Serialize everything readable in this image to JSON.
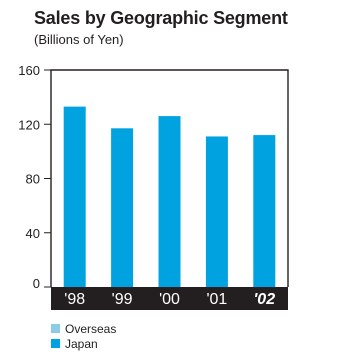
{
  "chart_data": {
    "type": "bar",
    "title": "Sales by Geographic Segment",
    "subtitle": "(Billions of Yen)",
    "categories": [
      "'98",
      "'99",
      "'00",
      "'01",
      "'02"
    ],
    "highlight_category": "'02",
    "yticks": [
      0,
      40,
      80,
      120,
      160
    ],
    "ylim": [
      0,
      160
    ],
    "series": [
      {
        "name": "Overseas",
        "values": [
          0,
          0,
          0,
          0,
          0
        ]
      },
      {
        "name": "Japan",
        "values": [
          133,
          117,
          126,
          111,
          112
        ]
      }
    ],
    "legend": [
      {
        "label": "Overseas",
        "color": "#8ccbe8"
      },
      {
        "label": "Japan",
        "color": "#00a3df"
      }
    ],
    "legend_position": "bottom-left",
    "grid": false,
    "colors": {
      "bar": "#00a3df",
      "axis_band": "#231f20",
      "tick_text": "#ffffff"
    }
  }
}
